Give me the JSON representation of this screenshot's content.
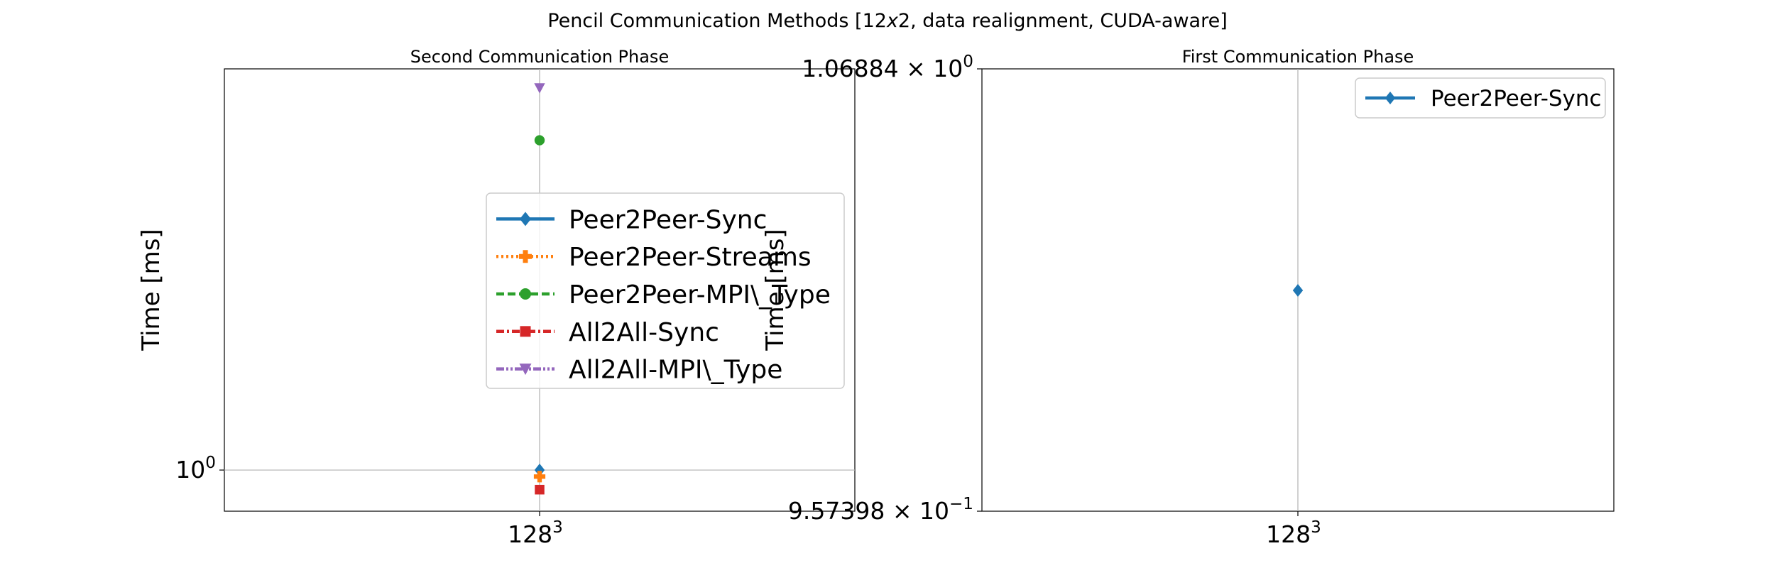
{
  "figure": {
    "suptitle": "Pencil Communication Methods [12x2, data realignment, CUDA-aware]"
  },
  "chart_data": [
    {
      "type": "scatter",
      "title": "Second Communication Phase",
      "xlabel": "",
      "ylabel": "Time [ms]",
      "yscale": "log",
      "grid": true,
      "legend_position": "center-right",
      "categories": [
        "128^3"
      ],
      "x_tick_labels": [
        {
          "base": "128",
          "exp": "3"
        }
      ],
      "y_tick_labels": [
        {
          "base": "10",
          "exp": "0",
          "value": 1.0
        }
      ],
      "ylim": [
        0.975,
        1.28
      ],
      "series": [
        {
          "name": "Peer2Peer-Sync",
          "values": [
            1.0
          ],
          "color": "#1f77b4",
          "linestyle": "solid",
          "marker": "diamond"
        },
        {
          "name": "Peer2Peer-Streams",
          "values": [
            0.996
          ],
          "color": "#ff7f0e",
          "linestyle": "dotted",
          "marker": "plus-filled"
        },
        {
          "name": "Peer2Peer-MPI\\_Type",
          "values": [
            1.225
          ],
          "color": "#2ca02c",
          "linestyle": "dashed",
          "marker": "circle"
        },
        {
          "name": "All2All-Sync",
          "values": [
            0.988
          ],
          "color": "#d62728",
          "linestyle": "dashdot",
          "marker": "square"
        },
        {
          "name": "All2All-MPI\\_Type",
          "values": [
            1.265
          ],
          "color": "#9467bd",
          "linestyle": "dashdotdot",
          "marker": "triangle-down"
        }
      ]
    },
    {
      "type": "scatter",
      "title": "First Communication Phase",
      "xlabel": "",
      "ylabel": "Time [ms]",
      "yscale": "log",
      "grid": true,
      "legend_position": "top-right",
      "categories": [
        "128^3"
      ],
      "x_tick_labels": [
        {
          "base": "128",
          "exp": "3"
        }
      ],
      "y_tick_labels": [
        {
          "mantissa": "1.06884",
          "base": "10",
          "exp": "0",
          "value": 1.06884
        },
        {
          "mantissa": "9.57398",
          "base": "10",
          "exp": "−1",
          "value": 0.957398
        }
      ],
      "ylim": [
        0.957398,
        1.06884
      ],
      "series": [
        {
          "name": "Peer2Peer-Sync",
          "values": [
            1.0115
          ],
          "color": "#1f77b4",
          "linestyle": "solid",
          "marker": "diamond"
        }
      ]
    }
  ]
}
